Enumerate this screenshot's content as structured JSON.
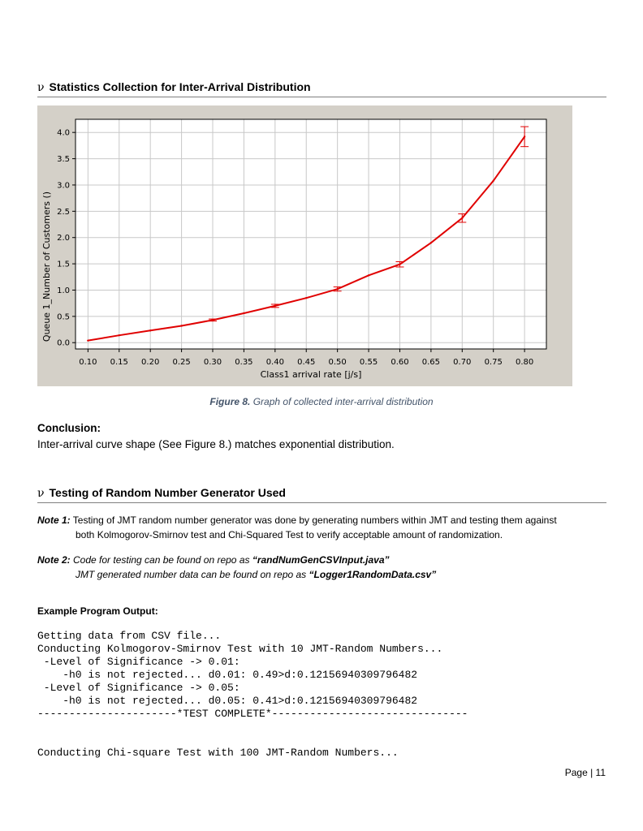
{
  "section1": {
    "bullet": "ν",
    "title": "Statistics Collection for Inter-Arrival Distribution"
  },
  "chart_data": {
    "type": "line",
    "xlabel": "Class1 arrival rate [j/s]",
    "ylabel": "Queue 1_Number of Customers ()",
    "xlim": [
      0.08,
      0.835
    ],
    "ylim": [
      -0.12,
      4.25
    ],
    "xticks": [
      0.1,
      0.15,
      0.2,
      0.25,
      0.3,
      0.35,
      0.4,
      0.45,
      0.5,
      0.55,
      0.6,
      0.65,
      0.7,
      0.75,
      0.8
    ],
    "xtick_labels": [
      "0.10",
      "0.15",
      "0.20",
      "0.25",
      "0.30",
      "0.35",
      "0.40",
      "0.45",
      "0.50",
      "0.55",
      "0.60",
      "0.65",
      "0.70",
      "0.75",
      "0.80"
    ],
    "yticks": [
      0.0,
      0.5,
      1.0,
      1.5,
      2.0,
      2.5,
      3.0,
      3.5,
      4.0
    ],
    "ytick_labels": [
      "0.0",
      "0.5",
      "1.0",
      "1.5",
      "2.0",
      "2.5",
      "3.0",
      "3.5",
      "4.0"
    ],
    "grid": true,
    "line_color": "#e00000",
    "series": [
      {
        "x": [
          0.1,
          0.15,
          0.2,
          0.25,
          0.3,
          0.35,
          0.4,
          0.45,
          0.5,
          0.55,
          0.6,
          0.65,
          0.7,
          0.75,
          0.8
        ],
        "y": [
          0.04,
          0.14,
          0.23,
          0.32,
          0.43,
          0.56,
          0.7,
          0.85,
          1.02,
          1.28,
          1.49,
          1.9,
          2.37,
          3.08,
          3.92
        ]
      }
    ],
    "error_bars": [
      {
        "x": 0.3,
        "low": 0.41,
        "high": 0.45
      },
      {
        "x": 0.4,
        "low": 0.67,
        "high": 0.73
      },
      {
        "x": 0.5,
        "low": 0.98,
        "high": 1.06
      },
      {
        "x": 0.6,
        "low": 1.44,
        "high": 1.54
      },
      {
        "x": 0.7,
        "low": 2.29,
        "high": 2.45
      },
      {
        "x": 0.8,
        "low": 3.73,
        "high": 4.11
      }
    ]
  },
  "caption": {
    "label": "Figure 8.",
    "text": " Graph of collected inter-arrival distribution"
  },
  "conclusion": {
    "label": "Conclusion:",
    "text": "Inter-arrival curve shape (See Figure 8.) matches exponential distribution."
  },
  "section2": {
    "bullet": "ν",
    "title": "Testing of Random Number Generator Used"
  },
  "note1": {
    "label": "Note 1:",
    "line1": " Testing of JMT random number generator was done by generating numbers within JMT and testing them against",
    "line2": "both Kolmogorov-Smirnov test and Chi-Squared Test to verify acceptable amount of randomization."
  },
  "note2": {
    "label": "Note 2:",
    "line1_text": " Code for testing can be found on repo as ",
    "line1_file": "“randNumGenCSVInput.java”",
    "line2_text": "JMT generated number data can be found on repo as ",
    "line2_file": "“Logger1RandomData.csv”"
  },
  "example_label": "Example Program Output:",
  "program_output": {
    "line1": "Getting data from CSV file...",
    "line2": "Conducting Kolmogorov-Smirnov Test with 10 JMT-Random Numbers...",
    "line3": " -Level of Significance -> 0.01:",
    "line4": "    -h0 is not rejected... d0.01: 0.49>d:0.12156940309796482",
    "line5": " -Level of Significance -> 0.05:",
    "line6": "    -h0 is not rejected... d0.05: 0.41>d:0.12156940309796482",
    "line7": "----------------------*TEST COMPLETE*-------------------------------",
    "line8": "Conducting Chi-square Test with 100 JMT-Random Numbers..."
  },
  "page_number": "Page | 11"
}
